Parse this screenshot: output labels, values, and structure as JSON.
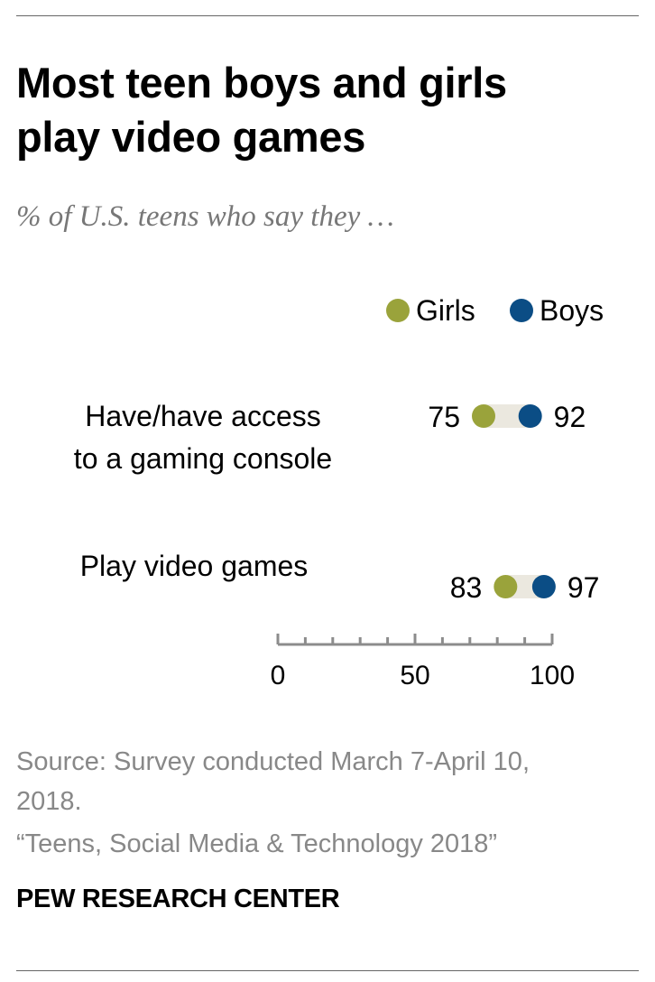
{
  "header": {
    "title_line1": "Most teen boys and girls",
    "title_line2": "play video games",
    "subtitle": "% of U.S. teens who say they …"
  },
  "footer": {
    "source_line1": "Source: Survey conducted March 7-April 10,",
    "source_line2": "2018.",
    "report": "“Teens, Social Media & Technology 2018”",
    "brand": "PEW RESEARCH CENTER"
  },
  "colors": {
    "girls": "#9aa33b",
    "boys": "#0b4d85",
    "connector": "#ebe8df",
    "axis": "#8c8c8c"
  },
  "chart_data": {
    "type": "dot",
    "legend_position": "top-right",
    "categories": [
      [
        "Have/have access",
        "to a gaming console"
      ],
      [
        "Play video games"
      ]
    ],
    "series": [
      {
        "name": "Girls",
        "values": [
          75,
          83
        ]
      },
      {
        "name": "Boys",
        "values": [
          92,
          97
        ]
      }
    ],
    "xlim": [
      0,
      100
    ],
    "x_ticks": [
      0,
      50,
      100
    ],
    "grid": false
  }
}
